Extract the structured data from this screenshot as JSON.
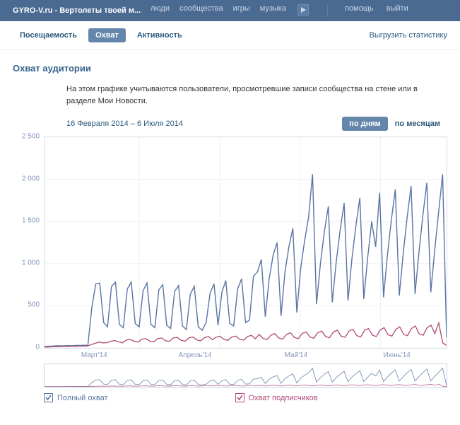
{
  "topbar": {
    "title": "GYRO-V.ru - Вертолеты твоей м...",
    "nav": [
      "люди",
      "сообщества",
      "игры",
      "музыка"
    ],
    "right": [
      "помощь",
      "выйти"
    ]
  },
  "tabs": {
    "visits": "Посещаемость",
    "reach": "Охват",
    "activity": "Активность",
    "export": "Выгрузить статистику"
  },
  "section": {
    "heading": "Охват аудитории",
    "desc": "На этом графике учитываются пользователи, просмотревшие записи сообщества на стене или в разделе Мои Новости.",
    "range": "16 Февраля 2014 – 6 Июля 2014",
    "agg_day": "по дням",
    "agg_month": "по месяцам"
  },
  "chart": {
    "type": "line",
    "ylim": [
      0,
      2500
    ],
    "yticks": [
      0,
      500,
      1000,
      1500,
      2000,
      2500
    ],
    "ytick_labels": [
      "0",
      "500",
      "1 000",
      "1 500",
      "2 000",
      "2 500"
    ],
    "xlabels": [
      "Март'14",
      "Апрель'14",
      "Май'14",
      "Июнь'14"
    ],
    "background_color": "#ffffff",
    "grid_color": "#eef1f6",
    "border_color": "#d9e0ea",
    "full": {
      "label": "Полный охват",
      "color": "#5976a3",
      "stroke_width": 1.4,
      "values": [
        18,
        20,
        22,
        25,
        24,
        26,
        28,
        27,
        29,
        30,
        32,
        31,
        480,
        760,
        770,
        300,
        250,
        730,
        780,
        280,
        240,
        700,
        780,
        290,
        250,
        680,
        770,
        280,
        240,
        690,
        750,
        270,
        230,
        670,
        740,
        260,
        220,
        640,
        730,
        250,
        210,
        300,
        650,
        760,
        270,
        660,
        800,
        290,
        260,
        700,
        820,
        300,
        330,
        850,
        900,
        1050,
        370,
        820,
        1100,
        1250,
        380,
        900,
        1200,
        1420,
        420,
        950,
        1280,
        1550,
        2060,
        520,
        1000,
        1380,
        1680,
        540,
        1020,
        1400,
        1720,
        560,
        1060,
        1450,
        1780,
        580,
        1080,
        1500,
        1200,
        1840,
        600,
        1100,
        1520,
        1880,
        620,
        1120,
        1550,
        1920,
        640,
        1140,
        1580,
        1960,
        660,
        1160,
        1620,
        2060,
        120
      ]
    },
    "sub": {
      "label": "Охват подписчиков",
      "color": "#b14a78",
      "stroke_width": 1.3,
      "values": [
        10,
        12,
        14,
        15,
        16,
        17,
        18,
        19,
        20,
        21,
        22,
        23,
        40,
        55,
        70,
        60,
        62,
        80,
        88,
        72,
        60,
        95,
        100,
        78,
        70,
        105,
        110,
        80,
        72,
        110,
        118,
        85,
        78,
        118,
        125,
        90,
        80,
        120,
        130,
        95,
        85,
        122,
        135,
        98,
        128,
        138,
        100,
        90,
        130,
        140,
        102,
        92,
        135,
        150,
        108,
        160,
        112,
        100,
        150,
        170,
        118,
        105,
        160,
        180,
        124,
        110,
        170,
        190,
        130,
        115,
        180,
        200,
        136,
        120,
        190,
        210,
        140,
        125,
        200,
        220,
        145,
        130,
        210,
        230,
        150,
        135,
        215,
        240,
        156,
        140,
        220,
        250,
        160,
        145,
        230,
        260,
        166,
        150,
        240,
        270,
        172,
        295,
        60,
        30
      ]
    }
  }
}
